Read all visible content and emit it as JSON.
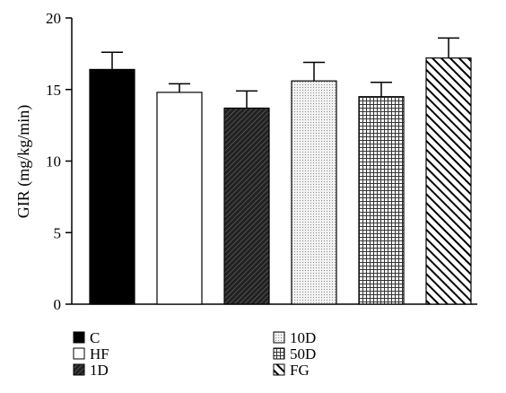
{
  "chart_data": {
    "type": "bar",
    "title": "",
    "xlabel": "",
    "ylabel": "GIR (mg/kg/min)",
    "ylim": [
      0,
      20
    ],
    "yticks": [
      0,
      5,
      10,
      15,
      20
    ],
    "grid": false,
    "legend_position": "bottom",
    "categories": [
      "C",
      "HF",
      "1D",
      "10D",
      "50D",
      "FG"
    ],
    "values": [
      16.4,
      14.8,
      13.7,
      15.6,
      14.5,
      17.2
    ],
    "errors": [
      1.2,
      0.6,
      1.2,
      1.3,
      1.0,
      1.4
    ],
    "fills": [
      "solid-black",
      "white",
      "diagonal-dense",
      "dots",
      "grid",
      "diagonal-bold"
    ]
  }
}
